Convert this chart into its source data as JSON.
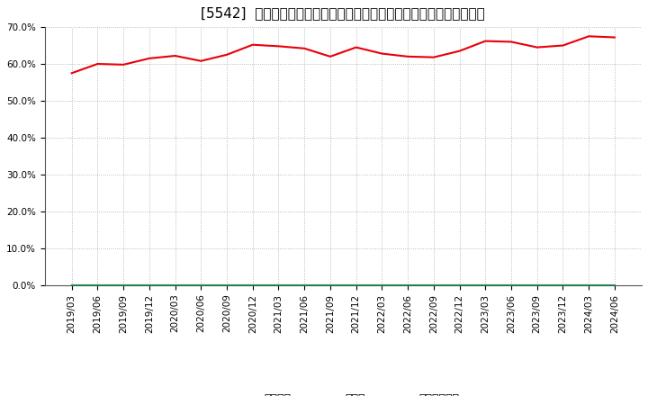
{
  "title": "[5542]  自己資本、のれん、繰延税金資産の総資産に対する比率の推移",
  "x_labels": [
    "2019/03",
    "2019/06",
    "2019/09",
    "2019/12",
    "2020/03",
    "2020/06",
    "2020/09",
    "2020/12",
    "2021/03",
    "2021/06",
    "2021/09",
    "2021/12",
    "2022/03",
    "2022/06",
    "2022/09",
    "2022/12",
    "2023/03",
    "2023/06",
    "2023/09",
    "2023/12",
    "2024/03",
    "2024/06"
  ],
  "jikoshihon": [
    57.5,
    60.0,
    59.8,
    61.5,
    62.2,
    60.8,
    62.5,
    65.2,
    64.8,
    64.2,
    62.0,
    64.5,
    62.8,
    62.0,
    61.8,
    63.5,
    66.2,
    66.0,
    64.5,
    65.0,
    67.5,
    67.2
  ],
  "noren": [
    0.0,
    0.0,
    0.0,
    0.0,
    0.0,
    0.0,
    0.0,
    0.0,
    0.0,
    0.0,
    0.0,
    0.0,
    0.0,
    0.0,
    0.0,
    0.0,
    0.0,
    0.0,
    0.0,
    0.0,
    0.0,
    0.0
  ],
  "kuenzeichin": [
    0.0,
    0.0,
    0.0,
    0.0,
    0.0,
    0.0,
    0.0,
    0.0,
    0.0,
    0.0,
    0.0,
    0.0,
    0.0,
    0.0,
    0.0,
    0.0,
    0.0,
    0.0,
    0.0,
    0.0,
    0.0,
    0.0
  ],
  "jikoshihon_color": "#e8000a",
  "noren_color": "#0070c0",
  "kuenzeichin_color": "#00b050",
  "background_color": "#ffffff",
  "grid_color": "#aaaaaa",
  "ylim": [
    0.0,
    70.0
  ],
  "yticks": [
    0.0,
    10.0,
    20.0,
    30.0,
    40.0,
    50.0,
    60.0,
    70.0
  ],
  "legend_labels": [
    "自己資本",
    "のれん",
    "繰延税金資産"
  ],
  "title_fontsize": 11,
  "tick_fontsize": 7.5,
  "legend_fontsize": 9
}
